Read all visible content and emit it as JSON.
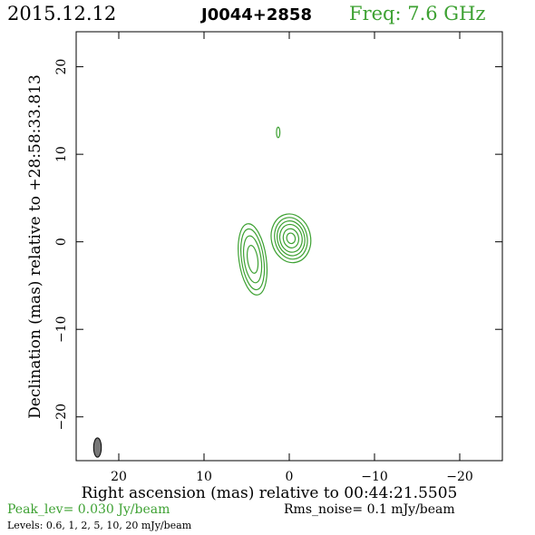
{
  "header": {
    "date": "2015.12.12",
    "source": "J0044+2858",
    "frequency": "Freq: 7.6 GHz"
  },
  "footer": {
    "peak": "Peak_lev=  0.030 Jy/beam",
    "rms": "Rms_noise=   0.1 mJy/beam",
    "levels": "Levels: 0.6,    1,    2,    5,   10,   20 mJy/beam"
  },
  "colors": {
    "accent": "#3da132",
    "beam": "#777777",
    "frame": "#000000"
  },
  "chart_data": {
    "type": "contour",
    "xlabel": "Right ascension (mas) relative to 00:44:21.5505",
    "ylabel": "Declination (mas) relative to +28:58:33.813",
    "xlim": [
      25,
      -25
    ],
    "ylim": [
      -25,
      24
    ],
    "xticks": [
      20,
      10,
      0,
      -10,
      -20
    ],
    "yticks": [
      20,
      10,
      0,
      -10,
      -20
    ],
    "xtick_labels": [
      "20",
      "10",
      "0",
      "−10",
      "−20"
    ],
    "ytick_labels": [
      "20",
      "10",
      "0",
      "−10",
      "−20"
    ],
    "contour_levels_mJy": [
      0.6,
      1,
      2,
      5,
      10,
      20
    ],
    "peak_Jy_per_beam": 0.03,
    "rms_mJy_per_beam": 0.1,
    "components": [
      {
        "name": "core",
        "x": -0.2,
        "y": 0.4,
        "rx": [
          2.3,
          1.9,
          1.6,
          1.3,
          0.9,
          0.5
        ],
        "ry": [
          2.8,
          2.4,
          2.0,
          1.6,
          1.1,
          0.6
        ],
        "angle": -12
      },
      {
        "name": "jet",
        "x": 4.3,
        "y": -2.0,
        "rx": [
          1.6,
          1.3,
          1.0,
          0.6
        ],
        "ry": [
          4.1,
          3.5,
          2.7,
          1.6
        ],
        "angle": -8
      },
      {
        "name": "blob",
        "x": 1.3,
        "y": 12.5,
        "rx": [
          0.2
        ],
        "ry": [
          0.6
        ],
        "angle": 0
      }
    ],
    "beam": {
      "x": 22.5,
      "y": -23.5,
      "rx": 0.45,
      "ry": 1.1,
      "angle": 0
    },
    "grid": false
  }
}
